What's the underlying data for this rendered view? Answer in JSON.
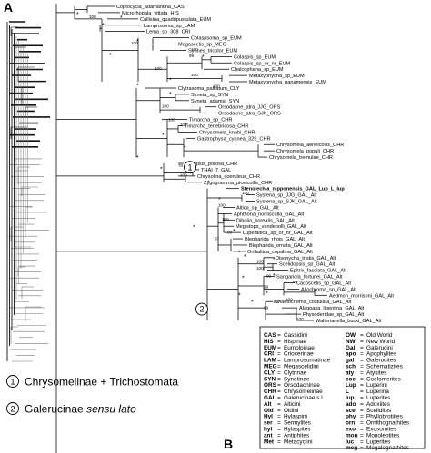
{
  "panel_a": "A",
  "panel_b": "B",
  "clade_notes": [
    {
      "num": "1",
      "label": "Chrysomelinae + Trichostomata"
    },
    {
      "num": "2",
      "label": "Galerucinae",
      "suffix": "sensu lato"
    }
  ],
  "taxa": [
    "Coptocycla_adamantina_CAS",
    "Microrhopala_vittata_HIS",
    "Callisina_quadripustulata_EUM",
    "Lamprosoma_sp_LAM",
    "Lema_sp_308_CRI",
    "Colaspsoma_sp_EUM",
    "Megascelis_sp_MEG",
    "Synnes_tricolor_EUM",
    "Colaspis_sp_EUM",
    "Colaspis_sp_or_nr_EUM",
    "Chalcophana_sp_EUM",
    "Metaxyonycha_sp_EUM",
    "Metaxyonycha_panamensis_EUM",
    "Clytrasoma_palliatum_CLY",
    "Syneta_sp_SYN",
    "Syneta_adamsi_SYN",
    "Orsodacne_atra_JJG_ORS",
    "Orsodacne_atra_SJK_ORS",
    "Timarcha_sp_CHR",
    "Timarcha_tenebricosa_CHR",
    "Chrysomela_knabi_CHR",
    "Gastrophysa_cyanea_329_CHR",
    "Chrysomela_aeneicollis_CHR",
    "Chrysomela_populi_CHR",
    "Chrysomela_tremulae_CHR",
    "Paropsis_porosa_CHR",
    "THAI_7_GAL",
    "Chrysolina_coeruleus_CHR",
    "Zygogramma_piceicollis_CHR",
    "Stenolechia_nipponensis_GAL_Lup_L_lup",
    "Systena_sp_JJG_GAL_Alt",
    "Systena_sp_SJK_GAL_Alt",
    "Altica_sp_GAL_Alt",
    "Aphthona_nonlisculla_GAL_Alt",
    "Dibolia_borealis_GAL_Alt",
    "Megistops_vandepolli_GAL_Alt",
    "Luperaltica_sp_or_nr_GAL_Alt",
    "Blepharida_rhois_GAL_Alt",
    "Blepharida_ornata_GAL_Alt",
    "Orthaltica_copalina_GAL_Alt",
    "Disonycha_tristis_GAL_Alt",
    "Scelidopsis_sp_GAL_Alt",
    "Epitrix_fasciata_GAL_Alt",
    "Sangariola_fortunei_GAL_Alt",
    "Cacoscelis_sp_GAL_Alt",
    "Allochroma_sp_GAL_Alt",
    "Aedmon_morrisoni_GAL_Alt",
    "Chaetocnema_costulata_GAL_Alt",
    "Alagoasa_libentina_GAL_Alt",
    "Physoderidae_sp_GAL_Alt",
    "Walterianella_bucki_GAL_Alt"
  ],
  "support_labels": [
    "100",
    "100",
    "100",
    "99",
    "100",
    "100",
    "100",
    "100",
    "100",
    "100",
    "70",
    "100",
    "100",
    "100",
    "100",
    "97",
    "99",
    "100",
    "100",
    "99",
    "99",
    "99",
    "100",
    "99",
    "100",
    "100"
  ],
  "support_star": "*",
  "legend_left": [
    {
      "code": "CAS",
      "name": "Cassidini"
    },
    {
      "code": "HIS",
      "name": "Hispinae"
    },
    {
      "code": "EUM",
      "name": "Eumolpinae"
    },
    {
      "code": "CRI",
      "name": "Criocerinae"
    },
    {
      "code": "LAM",
      "name": "Lamprosomatinae"
    },
    {
      "code": "MEG",
      "name": "Megascelidini"
    },
    {
      "code": "CLY",
      "name": "Clytrinae"
    },
    {
      "code": "SYN",
      "name": "Synetinae"
    },
    {
      "code": "ORS",
      "name": "Orsodacninae"
    },
    {
      "code": "CHR",
      "name": "Chrysomelinae"
    },
    {
      "code": "GAL",
      "name": "Galerucinae s.l."
    },
    {
      "code": "Alt",
      "name": "Alticini"
    },
    {
      "code": "Oid",
      "name": "Oidini"
    },
    {
      "code": "Hyl",
      "name": "Hylaspini"
    },
    {
      "code": "ser",
      "name": "Sermylites"
    },
    {
      "code": "hyl",
      "name": "Hylaspites"
    },
    {
      "code": "ant",
      "name": "Antiphites"
    },
    {
      "code": "Met",
      "name": "Metacyclini"
    }
  ],
  "legend_right": [
    {
      "code": "OW",
      "name": "Old World"
    },
    {
      "code": "NW",
      "name": "New World"
    },
    {
      "code": "Gal",
      "name": "Galerucini"
    },
    {
      "code": "apo",
      "name": "Apophylites"
    },
    {
      "code": "gal",
      "name": "Galerucites"
    },
    {
      "code": "sch",
      "name": "Schematizites"
    },
    {
      "code": "aty",
      "name": "Atysites"
    },
    {
      "code": "coe",
      "name": "Coelomerites"
    },
    {
      "code": "Lup",
      "name": "Luperini"
    },
    {
      "code": "L",
      "name": "Luperina"
    },
    {
      "code": "lup",
      "name": "Luperites"
    },
    {
      "code": "ado",
      "name": "Adoxiites"
    },
    {
      "code": "sce",
      "name": "Scelidites"
    },
    {
      "code": "phy",
      "name": "Phyllobrotiites"
    },
    {
      "code": "orn",
      "name": "Ornithognathites"
    },
    {
      "code": "exo",
      "name": "Exosomites"
    },
    {
      "code": "mon",
      "name": "Monoleptites"
    },
    {
      "code": "luc",
      "name": "Luperites"
    },
    {
      "code": "meg",
      "name": "Megalognathites"
    }
  ]
}
